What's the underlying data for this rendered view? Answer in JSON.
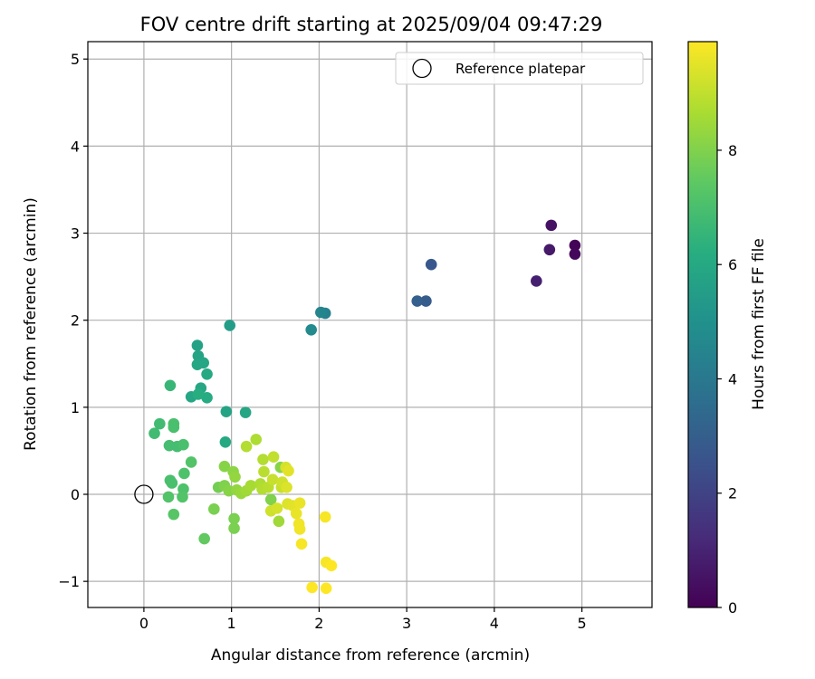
{
  "chart_data": {
    "type": "scatter",
    "title": "FOV centre drift starting at 2025/09/04 09:47:29",
    "xlabel": "Angular distance from reference (arcmin)",
    "ylabel": "Rotation from reference (arcmin)",
    "xlim": [
      -0.64,
      5.8
    ],
    "ylim": [
      -1.3,
      5.2
    ],
    "xticks": [
      0,
      1,
      2,
      3,
      4,
      5
    ],
    "yticks": [
      -1,
      0,
      1,
      2,
      3,
      4,
      5
    ],
    "grid": true,
    "legend": {
      "position": "top-right",
      "label": "Reference platepar"
    },
    "reference_point": {
      "x": 0,
      "y": 0
    },
    "colorbar": {
      "label": "Hours from first FF file",
      "colormap": "viridis",
      "range": [
        0,
        9.9
      ],
      "ticks": [
        0,
        2,
        4,
        6,
        8
      ]
    },
    "colormap_stops": [
      "#440154",
      "#472c7a",
      "#3b518b",
      "#2c718e",
      "#21908d",
      "#27ad81",
      "#5cc863",
      "#aadc32",
      "#fde725"
    ],
    "points": [
      {
        "x": 4.92,
        "y": 2.86,
        "t": 0.1
      },
      {
        "x": 4.92,
        "y": 2.76,
        "t": 0.2
      },
      {
        "x": 4.65,
        "y": 3.09,
        "t": 0.5
      },
      {
        "x": 4.63,
        "y": 2.81,
        "t": 0.7
      },
      {
        "x": 4.48,
        "y": 2.45,
        "t": 0.9
      },
      {
        "x": 3.28,
        "y": 2.64,
        "t": 2.7
      },
      {
        "x": 3.22,
        "y": 2.22,
        "t": 2.9
      },
      {
        "x": 3.12,
        "y": 2.22,
        "t": 3.0
      },
      {
        "x": 2.07,
        "y": 2.08,
        "t": 4.3
      },
      {
        "x": 2.02,
        "y": 2.09,
        "t": 4.5
      },
      {
        "x": 1.91,
        "y": 1.89,
        "t": 4.7
      },
      {
        "x": 0.98,
        "y": 1.94,
        "t": 5.5
      },
      {
        "x": 0.61,
        "y": 1.71,
        "t": 5.7
      },
      {
        "x": 0.62,
        "y": 1.59,
        "t": 5.8
      },
      {
        "x": 0.61,
        "y": 1.49,
        "t": 5.9
      },
      {
        "x": 0.68,
        "y": 1.51,
        "t": 5.9
      },
      {
        "x": 0.72,
        "y": 1.38,
        "t": 6.0
      },
      {
        "x": 0.65,
        "y": 1.22,
        "t": 5.9
      },
      {
        "x": 0.54,
        "y": 1.12,
        "t": 5.9
      },
      {
        "x": 0.72,
        "y": 1.11,
        "t": 6.1
      },
      {
        "x": 0.62,
        "y": 1.15,
        "t": 6.2
      },
      {
        "x": 0.94,
        "y": 0.95,
        "t": 5.8
      },
      {
        "x": 1.16,
        "y": 0.94,
        "t": 5.9
      },
      {
        "x": 0.93,
        "y": 0.6,
        "t": 6.0
      },
      {
        "x": 0.3,
        "y": 1.25,
        "t": 6.6
      },
      {
        "x": 0.18,
        "y": 0.81,
        "t": 6.8
      },
      {
        "x": 0.34,
        "y": 0.81,
        "t": 7.0
      },
      {
        "x": 0.34,
        "y": 0.77,
        "t": 7.0
      },
      {
        "x": 0.12,
        "y": 0.7,
        "t": 6.8
      },
      {
        "x": 0.29,
        "y": 0.56,
        "t": 6.9
      },
      {
        "x": 0.38,
        "y": 0.55,
        "t": 6.9
      },
      {
        "x": 0.45,
        "y": 0.57,
        "t": 7.0
      },
      {
        "x": 0.54,
        "y": 0.37,
        "t": 7.2
      },
      {
        "x": 0.46,
        "y": 0.24,
        "t": 7.1
      },
      {
        "x": 0.3,
        "y": 0.16,
        "t": 7.0
      },
      {
        "x": 0.32,
        "y": 0.13,
        "t": 7.0
      },
      {
        "x": 0.45,
        "y": 0.06,
        "t": 7.1
      },
      {
        "x": 0.28,
        "y": -0.03,
        "t": 7.2
      },
      {
        "x": 0.44,
        "y": -0.03,
        "t": 7.2
      },
      {
        "x": 0.34,
        "y": -0.23,
        "t": 7.3
      },
      {
        "x": 0.69,
        "y": -0.51,
        "t": 7.5
      },
      {
        "x": 0.8,
        "y": -0.17,
        "t": 7.9
      },
      {
        "x": 0.85,
        "y": 0.08,
        "t": 7.8
      },
      {
        "x": 0.92,
        "y": 0.1,
        "t": 8.0
      },
      {
        "x": 0.92,
        "y": 0.32,
        "t": 8.1
      },
      {
        "x": 0.97,
        "y": 0.04,
        "t": 8.1
      },
      {
        "x": 1.02,
        "y": 0.26,
        "t": 8.2
      },
      {
        "x": 1.04,
        "y": 0.2,
        "t": 8.3
      },
      {
        "x": 1.06,
        "y": 0.05,
        "t": 8.3
      },
      {
        "x": 1.03,
        "y": -0.28,
        "t": 7.9
      },
      {
        "x": 1.03,
        "y": -0.39,
        "t": 7.9
      },
      {
        "x": 1.11,
        "y": 0.01,
        "t": 8.4
      },
      {
        "x": 1.17,
        "y": 0.04,
        "t": 8.5
      },
      {
        "x": 1.17,
        "y": 0.55,
        "t": 8.8
      },
      {
        "x": 1.22,
        "y": 0.1,
        "t": 8.6
      },
      {
        "x": 1.28,
        "y": 0.63,
        "t": 8.7
      },
      {
        "x": 1.33,
        "y": 0.12,
        "t": 8.7
      },
      {
        "x": 1.35,
        "y": 0.06,
        "t": 8.8
      },
      {
        "x": 1.36,
        "y": 0.4,
        "t": 8.8
      },
      {
        "x": 1.37,
        "y": 0.26,
        "t": 8.9
      },
      {
        "x": 1.42,
        "y": 0.08,
        "t": 8.9
      },
      {
        "x": 1.45,
        "y": -0.06,
        "t": 8.0
      },
      {
        "x": 1.45,
        "y": -0.19,
        "t": 9.2
      },
      {
        "x": 1.47,
        "y": 0.17,
        "t": 9.1
      },
      {
        "x": 1.48,
        "y": 0.43,
        "t": 9.0
      },
      {
        "x": 1.52,
        "y": -0.16,
        "t": 9.3
      },
      {
        "x": 1.54,
        "y": -0.31,
        "t": 8.5
      },
      {
        "x": 1.56,
        "y": 0.31,
        "t": 8.1
      },
      {
        "x": 1.57,
        "y": 0.08,
        "t": 9.1
      },
      {
        "x": 1.58,
        "y": 0.14,
        "t": 9.2
      },
      {
        "x": 1.62,
        "y": 0.31,
        "t": 9.3
      },
      {
        "x": 1.63,
        "y": 0.08,
        "t": 9.4
      },
      {
        "x": 1.64,
        "y": -0.11,
        "t": 9.4
      },
      {
        "x": 1.65,
        "y": 0.27,
        "t": 9.5
      },
      {
        "x": 1.7,
        "y": -0.13,
        "t": 9.5
      },
      {
        "x": 1.74,
        "y": -0.22,
        "t": 9.6
      },
      {
        "x": 1.78,
        "y": -0.1,
        "t": 9.6
      },
      {
        "x": 1.77,
        "y": -0.34,
        "t": 9.7
      },
      {
        "x": 1.78,
        "y": -0.4,
        "t": 9.7
      },
      {
        "x": 1.8,
        "y": -0.57,
        "t": 9.8
      },
      {
        "x": 1.92,
        "y": -1.07,
        "t": 9.9
      },
      {
        "x": 2.07,
        "y": -0.26,
        "t": 9.8
      },
      {
        "x": 2.08,
        "y": -0.78,
        "t": 9.8
      },
      {
        "x": 2.14,
        "y": -0.82,
        "t": 9.9
      },
      {
        "x": 2.08,
        "y": -1.08,
        "t": 9.9
      }
    ]
  }
}
